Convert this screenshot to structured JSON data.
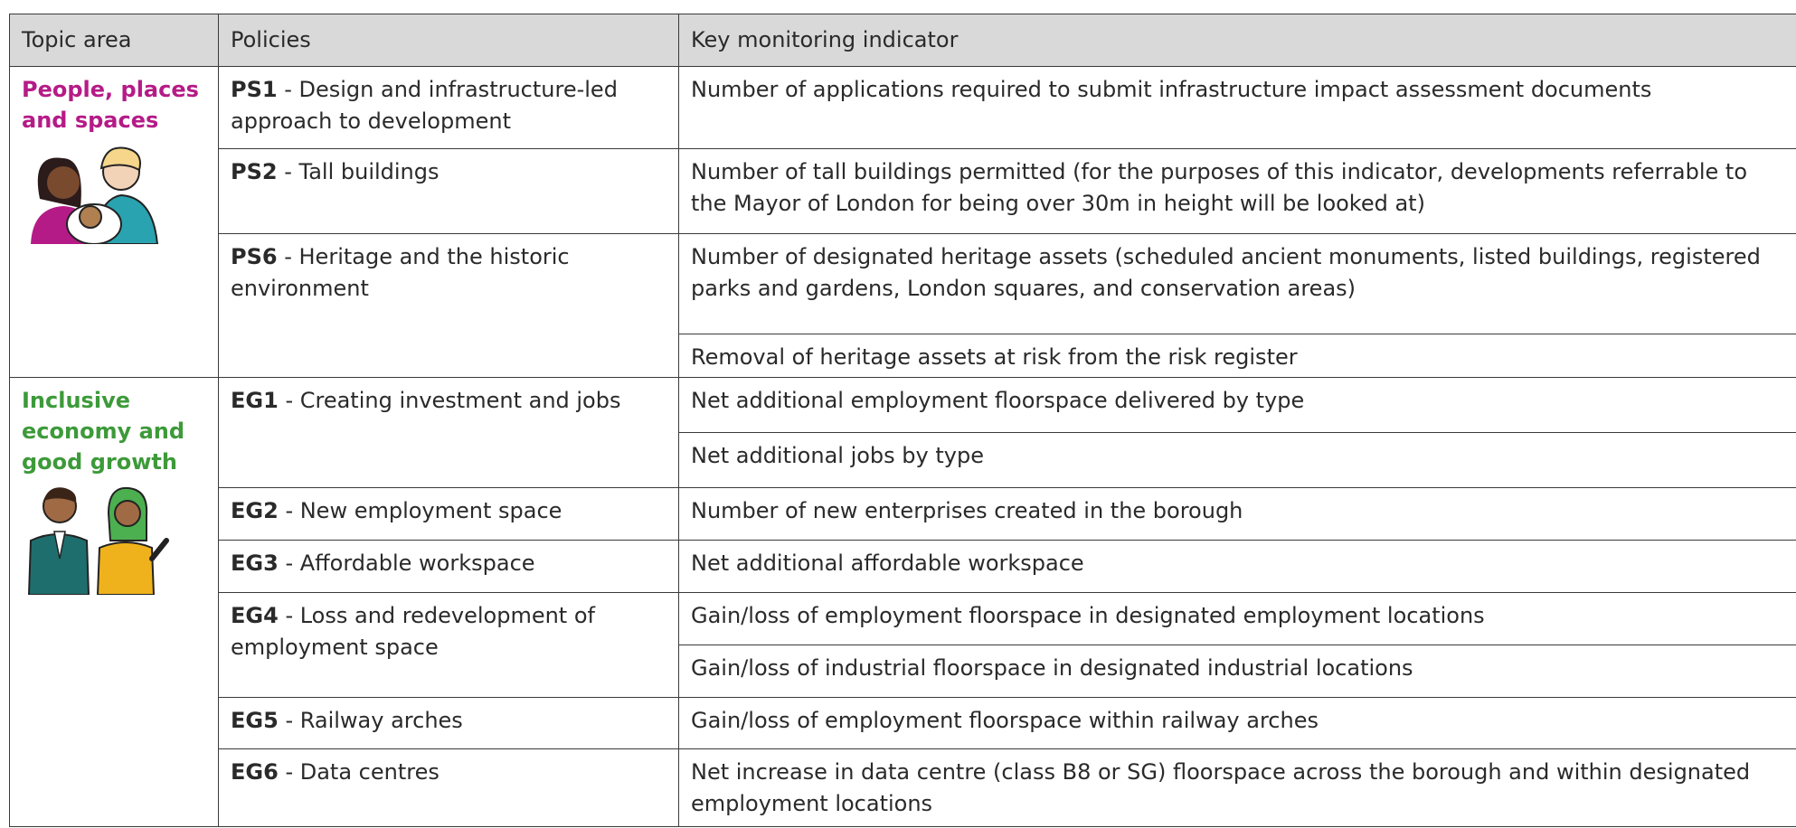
{
  "table": {
    "header": [
      "Topic area",
      "Policies",
      "Key monitoring indicator"
    ],
    "sections": [
      {
        "topic": "People, places and spaces",
        "policies": [
          {
            "code": "PS1",
            "name": "- Design and infrastructure-led approach to development",
            "indicators": [
              "Number of applications required to submit infrastructure impact assessment documents"
            ]
          },
          {
            "code": "PS2",
            "name": "- Tall buildings",
            "indicators": [
              "Number of tall buildings permitted (for the purposes of this indicator, developments referrable to the Mayor of London for being over 30m in height will be looked at)"
            ]
          },
          {
            "code": "PS6",
            "name": "- Heritage and the historic environment",
            "indicators": [
              "Number of designated heritage assets (scheduled ancient monuments, listed buildings, registered parks and gardens, London squares, and conservation areas)",
              "Removal of heritage assets at risk from the risk register"
            ]
          }
        ]
      },
      {
        "topic": "Inclusive economy and good growth",
        "policies": [
          {
            "code": "EG1",
            "name": "- Creating investment and jobs",
            "indicators": [
              "Net additional employment floorspace delivered by type",
              "Net additional jobs by type"
            ]
          },
          {
            "code": "EG2",
            "name": "- New employment space",
            "indicators": [
              "Number of new enterprises created in the borough"
            ]
          },
          {
            "code": "EG3",
            "name": "- Affordable workspace",
            "indicators": [
              "Net additional affordable workspace"
            ]
          },
          {
            "code": "EG4",
            "name": "- Loss and redevelopment of employment space",
            "indicators": [
              "Gain/loss of employment floorspace in designated employment locations",
              "Gain/loss of industrial floorspace in designated industrial locations"
            ]
          },
          {
            "code": "EG5",
            "name": "- Railway arches",
            "indicators": [
              "Gain/loss of employment floorspace within railway arches"
            ]
          },
          {
            "code": "EG6",
            "name": "- Data centres",
            "indicators": [
              "Net increase in data centre (class B8 or SG) floorspace across the borough and within designated employment locations"
            ]
          }
        ]
      }
    ]
  }
}
